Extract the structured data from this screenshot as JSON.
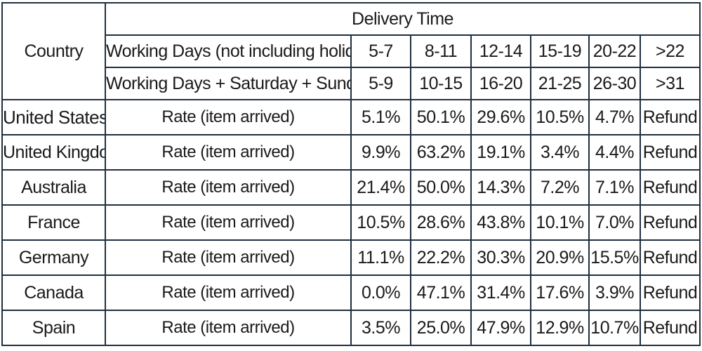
{
  "header": {
    "delivery_time": "Delivery Time",
    "country": "Country",
    "row_working_days": "Working Days (not including holiday)",
    "row_working_weekend": "Working Days + Saturday + Sunday",
    "ranges_working_days": [
      "5-7",
      "8-11",
      "12-14",
      "15-19",
      "20-22",
      ">22"
    ],
    "ranges_working_weekend": [
      "5-9",
      "10-15",
      "16-20",
      "21-25",
      "26-30",
      ">31"
    ]
  },
  "rows": [
    {
      "country": "United States",
      "label": "Rate (item arrived)",
      "values": [
        "5.1%",
        "50.1%",
        "29.6%",
        "10.5%",
        "4.7%",
        "Refund"
      ]
    },
    {
      "country": "United Kingdom",
      "label": "Rate (item arrived)",
      "values": [
        "9.9%",
        "63.2%",
        "19.1%",
        "3.4%",
        "4.4%",
        "Refund"
      ]
    },
    {
      "country": "Australia",
      "label": "Rate (item arrived)",
      "values": [
        "21.4%",
        "50.0%",
        "14.3%",
        "7.2%",
        "7.1%",
        "Refund"
      ]
    },
    {
      "country": "France",
      "label": "Rate (item arrived)",
      "values": [
        "10.5%",
        "28.6%",
        "43.8%",
        "10.1%",
        "7.0%",
        "Refund"
      ]
    },
    {
      "country": "Germany",
      "label": "Rate (item arrived)",
      "values": [
        "11.1%",
        "22.2%",
        "30.3%",
        "20.9%",
        "15.5%",
        "Refund"
      ]
    },
    {
      "country": "Canada",
      "label": "Rate (item arrived)",
      "values": [
        "0.0%",
        "47.1%",
        "31.4%",
        "17.6%",
        "3.9%",
        "Refund"
      ]
    },
    {
      "country": "Spain",
      "label": "Rate (item arrived)",
      "values": [
        "3.5%",
        "25.0%",
        "47.9%",
        "12.9%",
        "10.7%",
        "Refund"
      ]
    }
  ]
}
